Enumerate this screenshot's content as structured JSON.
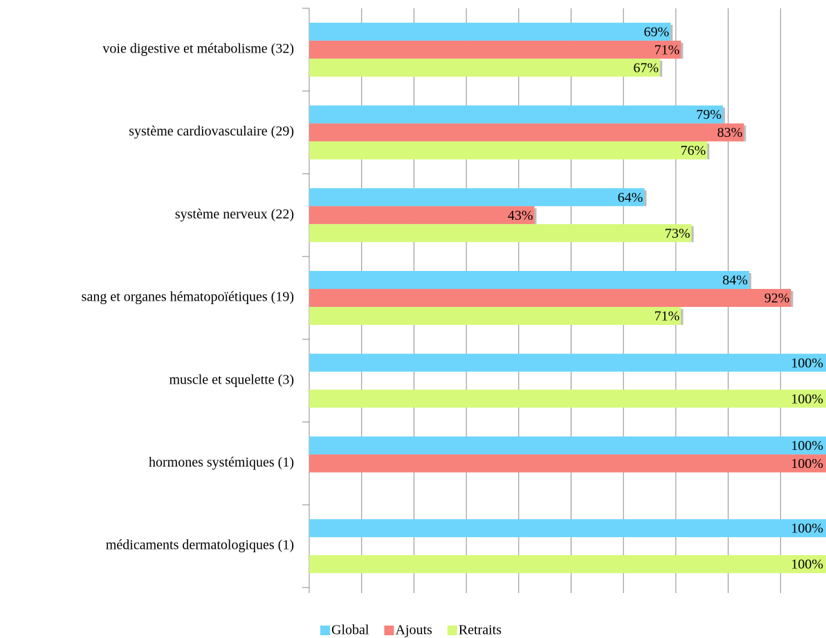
{
  "chart_data": {
    "type": "hbar",
    "categories": [
      "voie digestive et métabolisme (32)",
      "système cardiovasculaire (29)",
      "système nerveux (22)",
      "sang et organes hématopoïétiques (19)",
      "muscle et squelette (3)",
      "hormones systémiques (1)",
      "médicaments dermatologiques (1)"
    ],
    "series": [
      {
        "name": "Global",
        "color": "#6dd5fb",
        "values": [
          69,
          79,
          64,
          84,
          100,
          100,
          100
        ],
        "value_labels": [
          "69%",
          "79%",
          "64%",
          "84%",
          "100%",
          "100%",
          "100%"
        ]
      },
      {
        "name": "Ajouts",
        "color": "#f7827c",
        "values": [
          71,
          83,
          43,
          92,
          null,
          100,
          null
        ],
        "value_labels": [
          "71%",
          "83%",
          "43%",
          "92%",
          null,
          "100%",
          null
        ]
      },
      {
        "name": "Retraits",
        "color": "#d6f97a",
        "values": [
          67,
          76,
          73,
          71,
          100,
          null,
          100
        ],
        "value_labels": [
          "67%",
          "76%",
          "73%",
          "71%",
          "100%",
          null,
          "100%"
        ]
      }
    ],
    "xlim": [
      0,
      100
    ],
    "xticks": [
      0,
      10,
      20,
      30,
      40,
      50,
      60,
      70,
      80,
      90,
      100
    ],
    "grid": true,
    "legend": "bottom"
  }
}
